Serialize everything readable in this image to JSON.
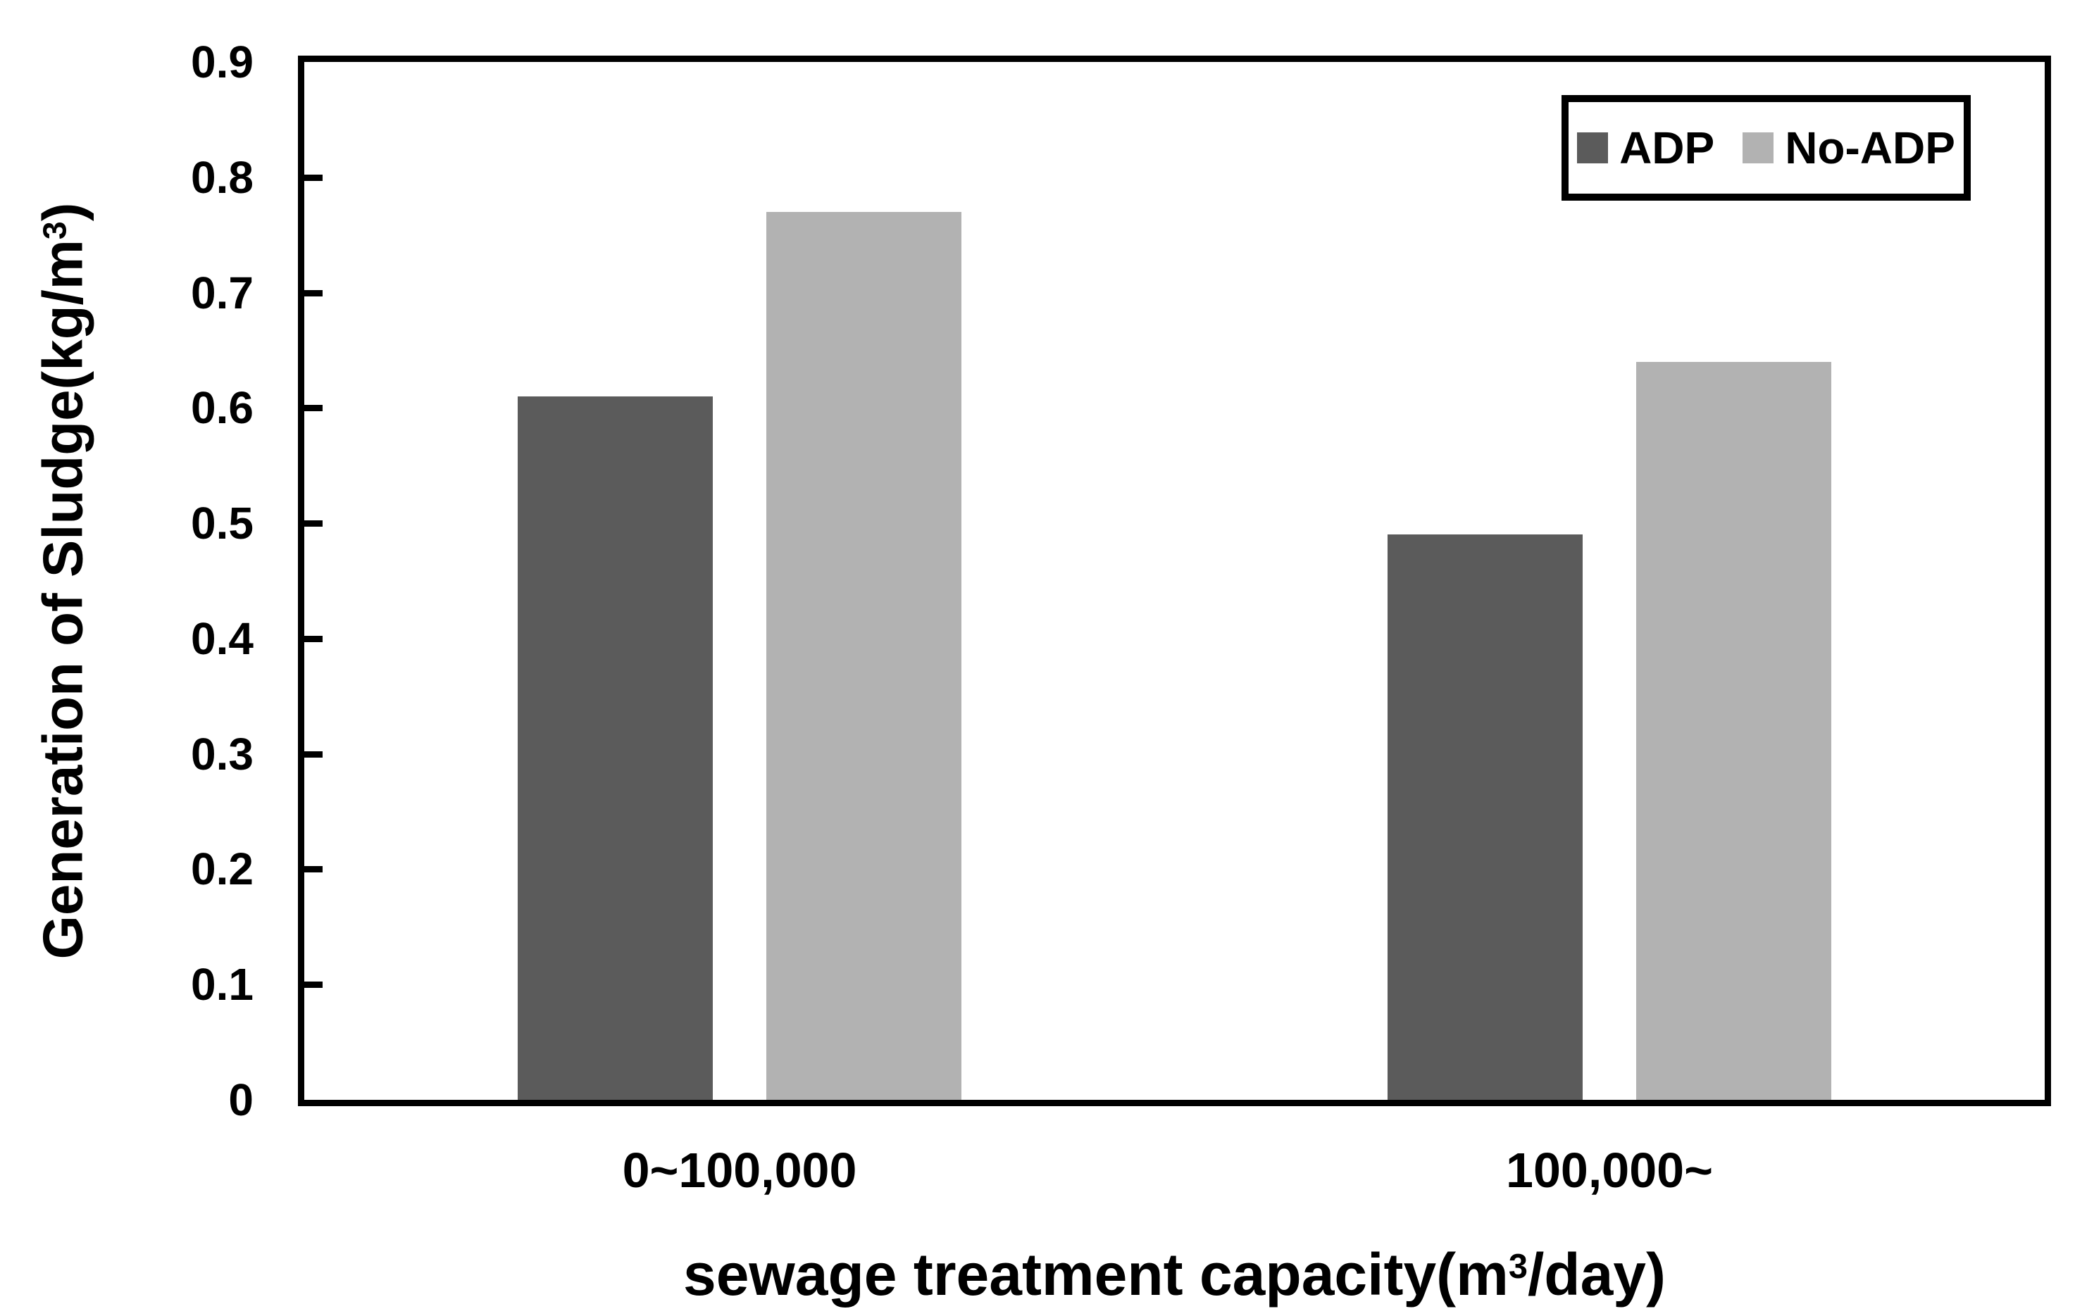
{
  "chart_data": {
    "type": "bar",
    "title": "",
    "categories": [
      "0~100,000",
      "100,000~"
    ],
    "series": [
      {
        "name": "ADP",
        "color": "#5b5b5b",
        "values": [
          0.61,
          0.49
        ]
      },
      {
        "name": "No-ADP",
        "color": "#b2b2b2",
        "values": [
          0.77,
          0.64
        ]
      }
    ],
    "xlabel": "sewage treatment capacity(m³/day)",
    "xlabel_parts": {
      "pre": "sewage treatment capacity(m",
      "sup": "3",
      "post": "/day)"
    },
    "ylabel": "Generation of Sludge(kg/m³)",
    "ylabel_parts": {
      "pre": "Generation of Sludge(kg/m",
      "sup": "3",
      "post": ")"
    },
    "ylim": [
      0,
      0.9
    ],
    "ytick_labels": [
      "0.9",
      "0.8",
      "0.7",
      "0.6",
      "0.5",
      "0.4",
      "0.3",
      "0.2",
      "0.1",
      "0"
    ],
    "ytick_values": [
      0.9,
      0.8,
      0.7,
      0.6,
      0.5,
      0.4,
      0.3,
      0.2,
      0.1,
      0
    ],
    "grid": false,
    "legend": {
      "position": "top-right",
      "frame": true,
      "labels": [
        "ADP",
        "No-ADP"
      ]
    },
    "axis_color": "#000000",
    "background": "#ffffff"
  }
}
